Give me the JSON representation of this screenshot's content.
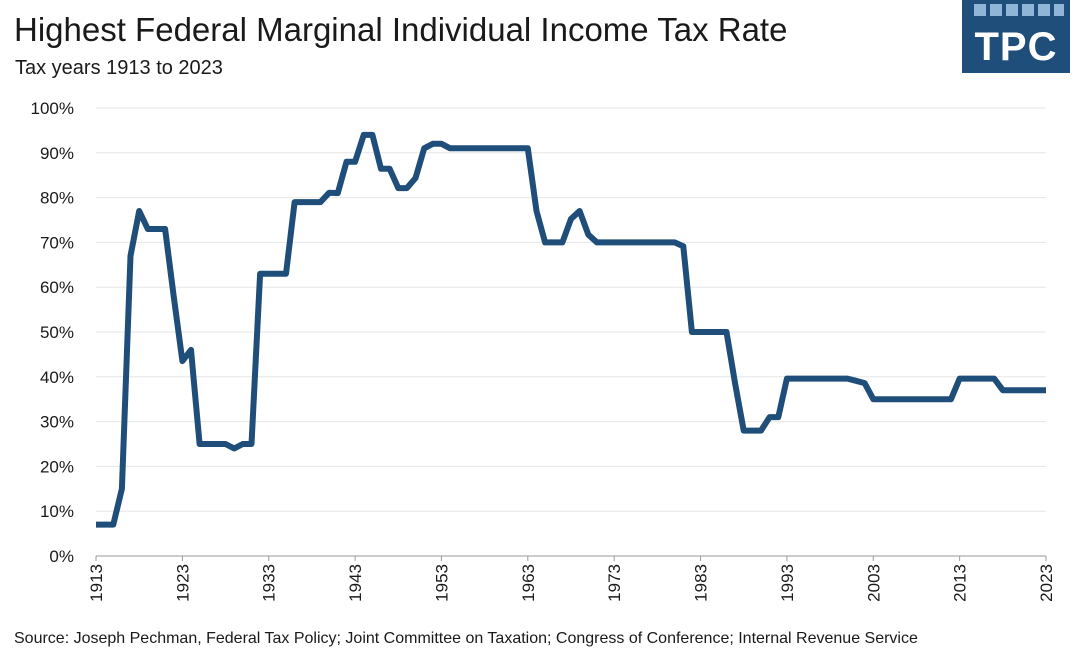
{
  "header": {
    "logo_text": "TPC"
  },
  "chart_data": {
    "type": "line",
    "title": "Highest Federal Marginal Individual Income Tax Rate",
    "subtitle": "Tax years 1913 to 2023",
    "xlabel": "",
    "ylabel": "",
    "xlim": [
      1913,
      2023
    ],
    "ylim": [
      0,
      100
    ],
    "x_ticks": [
      "1913",
      "1923",
      "1933",
      "1943",
      "1953",
      "1963",
      "1973",
      "1983",
      "1993",
      "2003",
      "2013",
      "2023"
    ],
    "y_ticks": [
      "0%",
      "10%",
      "20%",
      "30%",
      "40%",
      "50%",
      "60%",
      "70%",
      "80%",
      "90%",
      "100%"
    ],
    "grid": "horizontal",
    "line_color": "#1f4e7a",
    "x": [
      1913,
      1914,
      1915,
      1916,
      1917,
      1918,
      1919,
      1920,
      1921,
      1922,
      1923,
      1924,
      1925,
      1926,
      1927,
      1928,
      1929,
      1930,
      1931,
      1932,
      1933,
      1934,
      1935,
      1936,
      1937,
      1938,
      1939,
      1940,
      1941,
      1942,
      1943,
      1944,
      1945,
      1946,
      1947,
      1948,
      1949,
      1950,
      1951,
      1952,
      1953,
      1954,
      1955,
      1956,
      1957,
      1958,
      1959,
      1960,
      1961,
      1962,
      1963,
      1964,
      1965,
      1966,
      1967,
      1968,
      1969,
      1970,
      1971,
      1972,
      1973,
      1974,
      1975,
      1976,
      1977,
      1978,
      1979,
      1980,
      1981,
      1982,
      1983,
      1984,
      1985,
      1986,
      1987,
      1988,
      1989,
      1990,
      1991,
      1992,
      1993,
      1994,
      1995,
      1996,
      1997,
      1998,
      1999,
      2000,
      2001,
      2002,
      2003,
      2004,
      2005,
      2006,
      2007,
      2008,
      2009,
      2010,
      2011,
      2012,
      2013,
      2014,
      2015,
      2016,
      2017,
      2018,
      2019,
      2020,
      2021,
      2022,
      2023
    ],
    "series": [
      {
        "values": [
          7,
          7,
          7,
          15,
          67,
          77,
          73,
          73,
          73,
          58,
          43.5,
          46,
          25,
          25,
          25,
          25,
          24,
          25,
          25,
          63,
          63,
          63,
          63,
          79,
          79,
          79,
          79,
          81.1,
          81,
          88,
          88,
          94,
          94,
          86.45,
          86.45,
          82.13,
          82.13,
          84.36,
          91,
          92,
          92,
          91,
          91,
          91,
          91,
          91,
          91,
          91,
          91,
          91,
          91,
          77,
          70,
          70,
          70,
          75.25,
          77,
          71.75,
          70,
          70,
          70,
          70,
          70,
          70,
          70,
          70,
          70,
          70,
          69.125,
          50,
          50,
          50,
          50,
          50,
          38.5,
          28,
          28,
          28,
          31,
          31,
          39.6,
          39.6,
          39.6,
          39.6,
          39.6,
          39.6,
          39.6,
          39.6,
          39.1,
          38.6,
          35,
          35,
          35,
          35,
          35,
          35,
          35,
          35,
          35,
          35,
          39.6,
          39.6,
          39.6,
          39.6,
          39.6,
          37,
          37,
          37,
          37,
          37,
          37
        ]
      }
    ]
  },
  "footer": {
    "source_text": "Source: Joseph Pechman, Federal Tax Policy; Joint Committee on Taxation; Congress of Conference; Internal Revenue Service"
  }
}
